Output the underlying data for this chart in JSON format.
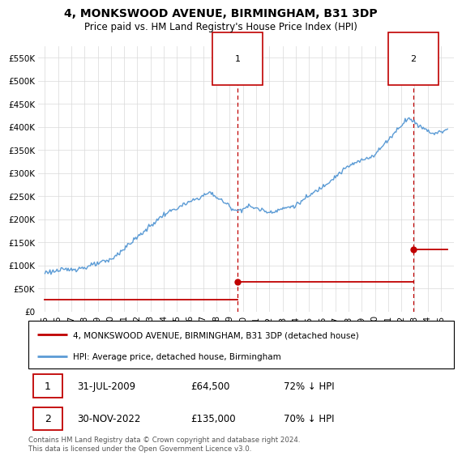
{
  "title": "4, MONKSWOOD AVENUE, BIRMINGHAM, B31 3DP",
  "subtitle": "Price paid vs. HM Land Registry's House Price Index (HPI)",
  "ylim": [
    0,
    575000
  ],
  "yticks": [
    0,
    50000,
    100000,
    150000,
    200000,
    250000,
    300000,
    350000,
    400000,
    450000,
    500000,
    550000
  ],
  "ytick_labels": [
    "£0",
    "£50K",
    "£100K",
    "£150K",
    "£200K",
    "£250K",
    "£300K",
    "£350K",
    "£400K",
    "£450K",
    "£500K",
    "£550K"
  ],
  "sale1_date": 2009.58,
  "sale1_price": 64500,
  "sale1_label": "1",
  "sale2_date": 2022.92,
  "sale2_price": 135000,
  "sale2_label": "2",
  "hpi_color": "#5b9bd5",
  "sale_color": "#c00000",
  "vline_color": "#c00000",
  "grid_color": "#d9d9d9",
  "legend_label1": "4, MONKSWOOD AVENUE, BIRMINGHAM, B31 3DP (detached house)",
  "legend_label2": "HPI: Average price, detached house, Birmingham",
  "table_row1": [
    "1",
    "31-JUL-2009",
    "£64,500",
    "72% ↓ HPI"
  ],
  "table_row2": [
    "2",
    "30-NOV-2022",
    "£135,000",
    "70% ↓ HPI"
  ],
  "footer": "Contains HM Land Registry data © Crown copyright and database right 2024.\nThis data is licensed under the Open Government Licence v3.0.",
  "title_fontsize": 10,
  "subtitle_fontsize": 8.5
}
